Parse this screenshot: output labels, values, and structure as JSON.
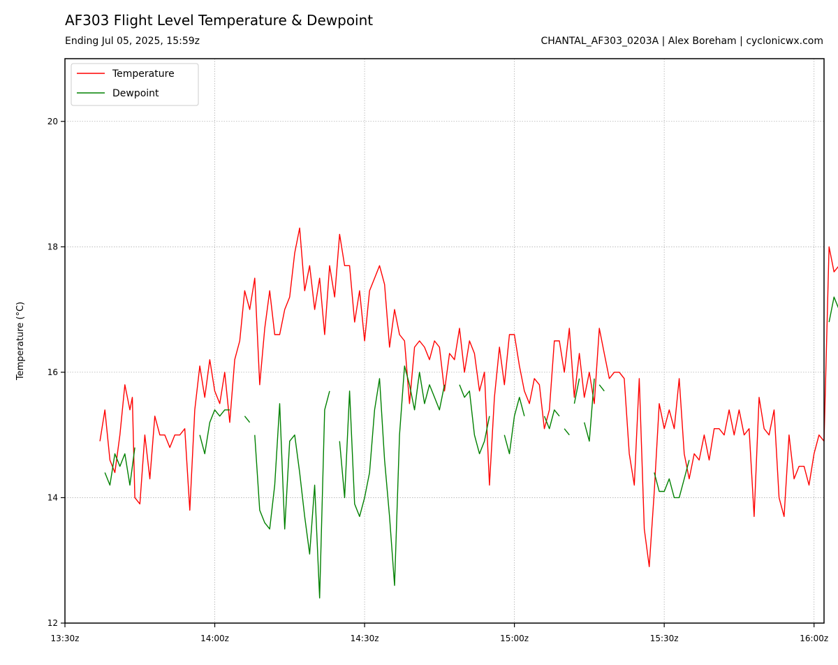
{
  "header": {
    "title": "AF303 Flight Level Temperature & Dewpoint",
    "subtitle": "Ending Jul 05, 2025, 15:59z",
    "credit": "CHANTAL_AF303_0203A | Alex Boreham | cyclonicwx.com"
  },
  "colors": {
    "temperature": "#ff0000",
    "dewpoint": "#008000",
    "grid": "#b0b0b0"
  },
  "chart_data": {
    "type": "line",
    "title": "AF303 Flight Level Temperature & Dewpoint",
    "subtitle": "Ending Jul 05, 2025, 15:59z",
    "xlabel": "",
    "ylabel": "Temperature (°C)",
    "xlim": [
      "13:30z",
      "16:02z"
    ],
    "ylim": [
      12,
      21
    ],
    "x_ticks": [
      "13:30z",
      "14:00z",
      "14:30z",
      "15:00z",
      "15:30z",
      "16:00z"
    ],
    "y_ticks": [
      12,
      14,
      16,
      18,
      20
    ],
    "grid": true,
    "legend_position": "top-left",
    "series": [
      {
        "name": "Temperature",
        "color": "#ff0000",
        "points": [
          [
            "13:37z",
            14.9
          ],
          [
            "13:38z",
            15.4
          ],
          [
            "13:39z",
            14.6
          ],
          [
            "13:40z",
            14.4
          ],
          [
            "13:41z",
            15.0
          ],
          [
            "13:42z",
            15.8
          ],
          [
            "13:43z",
            15.4
          ],
          [
            "13:43:30z",
            15.6
          ],
          [
            "13:44z",
            14.0
          ],
          [
            "13:45z",
            13.9
          ],
          [
            "13:46z",
            15.0
          ],
          [
            "13:47z",
            14.3
          ],
          [
            "13:48z",
            15.3
          ],
          [
            "13:49z",
            15.0
          ],
          [
            "13:50z",
            15.0
          ],
          [
            "13:51z",
            14.8
          ],
          [
            "13:52z",
            15.0
          ],
          [
            "13:53z",
            15.0
          ],
          [
            "13:54z",
            15.1
          ],
          [
            "13:55z",
            13.8
          ],
          [
            "13:56z",
            15.4
          ],
          [
            "13:57z",
            16.1
          ],
          [
            "13:58z",
            15.6
          ],
          [
            "13:59z",
            16.2
          ],
          [
            "14:00z",
            15.7
          ],
          [
            "14:01z",
            15.5
          ],
          [
            "14:02z",
            16.0
          ],
          [
            "14:03z",
            15.2
          ],
          [
            "14:04z",
            16.2
          ],
          [
            "14:05z",
            16.5
          ],
          [
            "14:06z",
            17.3
          ],
          [
            "14:07z",
            17.0
          ],
          [
            "14:08z",
            17.5
          ],
          [
            "14:09z",
            15.8
          ],
          [
            "14:10z",
            16.7
          ],
          [
            "14:11z",
            17.3
          ],
          [
            "14:12z",
            16.6
          ],
          [
            "14:13z",
            16.6
          ],
          [
            "14:14z",
            17.0
          ],
          [
            "14:15z",
            17.2
          ],
          [
            "14:16z",
            17.9
          ],
          [
            "14:17z",
            18.3
          ],
          [
            "14:18z",
            17.3
          ],
          [
            "14:19z",
            17.7
          ],
          [
            "14:20z",
            17.0
          ],
          [
            "14:21z",
            17.5
          ],
          [
            "14:22z",
            16.6
          ],
          [
            "14:23z",
            17.7
          ],
          [
            "14:24z",
            17.2
          ],
          [
            "14:25z",
            18.2
          ],
          [
            "14:26z",
            17.7
          ],
          [
            "14:27z",
            17.7
          ],
          [
            "14:28z",
            16.8
          ],
          [
            "14:29z",
            17.3
          ],
          [
            "14:30z",
            16.5
          ],
          [
            "14:31z",
            17.3
          ],
          [
            "14:32z",
            17.5
          ],
          [
            "14:33z",
            17.7
          ],
          [
            "14:34z",
            17.4
          ],
          [
            "14:35z",
            16.4
          ],
          [
            "14:36z",
            17.0
          ],
          [
            "14:37z",
            16.6
          ],
          [
            "14:38z",
            16.5
          ],
          [
            "14:39z",
            15.5
          ],
          [
            "14:40z",
            16.4
          ],
          [
            "14:41z",
            16.5
          ],
          [
            "14:42z",
            16.4
          ],
          [
            "14:43z",
            16.2
          ],
          [
            "14:44z",
            16.5
          ],
          [
            "14:45z",
            16.4
          ],
          [
            "14:46z",
            15.7
          ],
          [
            "14:47z",
            16.3
          ],
          [
            "14:48z",
            16.2
          ],
          [
            "14:49z",
            16.7
          ],
          [
            "14:50z",
            16.0
          ],
          [
            "14:51z",
            16.5
          ],
          [
            "14:52z",
            16.3
          ],
          [
            "14:53z",
            15.7
          ],
          [
            "14:54z",
            16.0
          ],
          [
            "14:55z",
            14.2
          ],
          [
            "14:56z",
            15.6
          ],
          [
            "14:57z",
            16.4
          ],
          [
            "14:58z",
            15.8
          ],
          [
            "14:59z",
            16.6
          ],
          [
            "15:00z",
            16.6
          ],
          [
            "15:01z",
            16.1
          ],
          [
            "15:02z",
            15.7
          ],
          [
            "15:03z",
            15.5
          ],
          [
            "15:04z",
            15.9
          ],
          [
            "15:05z",
            15.8
          ],
          [
            "15:06z",
            15.1
          ],
          [
            "15:07z",
            15.4
          ],
          [
            "15:08z",
            16.5
          ],
          [
            "15:09z",
            16.5
          ],
          [
            "15:10z",
            16.0
          ],
          [
            "15:11z",
            16.7
          ],
          [
            "15:12z",
            15.6
          ],
          [
            "15:13z",
            16.3
          ],
          [
            "15:14z",
            15.6
          ],
          [
            "15:15z",
            16.0
          ],
          [
            "15:16z",
            15.5
          ],
          [
            "15:17z",
            16.7
          ],
          [
            "15:18z",
            16.3
          ],
          [
            "15:19z",
            15.9
          ],
          [
            "15:20z",
            16.0
          ],
          [
            "15:21z",
            16.0
          ],
          [
            "15:22z",
            15.9
          ],
          [
            "15:23z",
            14.7
          ],
          [
            "15:24z",
            14.2
          ],
          [
            "15:25z",
            15.9
          ],
          [
            "15:26z",
            13.5
          ],
          [
            "15:27z",
            12.9
          ],
          [
            "15:28z",
            14.1
          ],
          [
            "15:29z",
            15.5
          ],
          [
            "15:30z",
            15.1
          ],
          [
            "15:31z",
            15.4
          ],
          [
            "15:32z",
            15.1
          ],
          [
            "15:33z",
            15.9
          ],
          [
            "15:34z",
            14.7
          ],
          [
            "15:35z",
            14.3
          ],
          [
            "15:36z",
            14.7
          ],
          [
            "15:37z",
            14.6
          ],
          [
            "15:38z",
            15.0
          ],
          [
            "15:39z",
            14.6
          ],
          [
            "15:40z",
            15.1
          ],
          [
            "15:41z",
            15.1
          ],
          [
            "15:42z",
            15.0
          ],
          [
            "15:43z",
            15.4
          ],
          [
            "15:44z",
            15.0
          ],
          [
            "15:45z",
            15.4
          ],
          [
            "15:46z",
            15.0
          ],
          [
            "15:47z",
            15.1
          ],
          [
            "15:48z",
            13.7
          ],
          [
            "15:49z",
            15.6
          ],
          [
            "15:50z",
            15.1
          ],
          [
            "15:51z",
            15.0
          ],
          [
            "15:52z",
            15.4
          ],
          [
            "15:53z",
            14.0
          ],
          [
            "15:54z",
            13.7
          ],
          [
            "15:55z",
            15.0
          ],
          [
            "15:56z",
            14.3
          ],
          [
            "15:57z",
            14.5
          ],
          [
            "15:58z",
            14.5
          ],
          [
            "15:59z",
            14.2
          ],
          [
            "16:00z",
            14.7
          ],
          [
            "16:01z",
            15.0
          ],
          [
            "16:02z",
            14.9
          ],
          [
            "16:03z",
            18.0
          ],
          [
            "16:04z",
            17.6
          ],
          [
            "16:05z",
            17.7
          ],
          [
            "16:06z",
            18.0
          ],
          [
            "16:07z",
            19.8
          ],
          [
            "16:08z",
            20.6
          ],
          [
            "16:09z",
            20.1
          ],
          [
            "16:10z",
            19.5
          ],
          [
            "16:11z",
            18.6
          ],
          [
            "16:12z",
            18.6
          ],
          [
            "16:13z",
            19.0
          ],
          [
            "16:14z",
            19.1
          ],
          [
            "16:15z",
            19.3
          ],
          [
            "16:16z",
            20.0
          ],
          [
            "16:17z",
            18.8
          ],
          [
            "16:18z",
            18.5
          ]
        ]
      },
      {
        "name": "Dewpoint",
        "color": "#008000",
        "segments": [
          [
            [
              "13:38z",
              14.4
            ],
            [
              "13:39z",
              14.2
            ],
            [
              "13:40z",
              14.7
            ],
            [
              "13:41z",
              14.5
            ],
            [
              "13:42z",
              14.7
            ],
            [
              "13:43z",
              14.2
            ],
            [
              "13:44z",
              14.8
            ]
          ],
          [
            [
              "13:57z",
              15.0
            ],
            [
              "13:58z",
              14.7
            ],
            [
              "13:59z",
              15.2
            ],
            [
              "14:00z",
              15.4
            ],
            [
              "14:01z",
              15.3
            ],
            [
              "14:02z",
              15.4
            ],
            [
              "14:03z",
              15.4
            ]
          ],
          [
            [
              "14:06z",
              15.3
            ],
            [
              "14:07z",
              15.2
            ]
          ],
          [
            [
              "14:08z",
              15.0
            ],
            [
              "14:09z",
              13.8
            ],
            [
              "14:10z",
              13.6
            ],
            [
              "14:11z",
              13.5
            ],
            [
              "14:12z",
              14.2
            ],
            [
              "14:13z",
              15.5
            ],
            [
              "14:14z",
              13.5
            ],
            [
              "14:15z",
              14.9
            ],
            [
              "14:16z",
              15.0
            ],
            [
              "14:17z",
              14.4
            ],
            [
              "14:18z",
              13.7
            ],
            [
              "14:19z",
              13.1
            ],
            [
              "14:20z",
              14.2
            ],
            [
              "14:21z",
              12.4
            ],
            [
              "14:22z",
              15.4
            ],
            [
              "14:23z",
              15.7
            ]
          ],
          [
            [
              "14:25z",
              14.9
            ],
            [
              "14:26z",
              14.0
            ],
            [
              "14:27z",
              15.7
            ],
            [
              "14:28z",
              13.9
            ],
            [
              "14:29z",
              13.7
            ],
            [
              "14:30z",
              14.0
            ],
            [
              "14:31z",
              14.4
            ],
            [
              "14:32z",
              15.4
            ],
            [
              "14:33z",
              15.9
            ],
            [
              "14:34z",
              14.6
            ],
            [
              "14:35z",
              13.7
            ],
            [
              "14:36z",
              12.6
            ],
            [
              "14:37z",
              15.0
            ],
            [
              "14:38z",
              16.1
            ],
            [
              "14:39z",
              15.8
            ],
            [
              "14:40z",
              15.4
            ],
            [
              "14:41z",
              16.0
            ],
            [
              "14:42z",
              15.5
            ],
            [
              "14:43z",
              15.8
            ],
            [
              "14:44z",
              15.6
            ],
            [
              "14:45z",
              15.4
            ],
            [
              "14:46z",
              15.8
            ]
          ],
          [
            [
              "14:49z",
              15.8
            ],
            [
              "14:50z",
              15.6
            ],
            [
              "14:51z",
              15.7
            ],
            [
              "14:52z",
              15.0
            ],
            [
              "14:53z",
              14.7
            ],
            [
              "14:54z",
              14.9
            ],
            [
              "14:55z",
              15.3
            ]
          ],
          [
            [
              "14:58z",
              15.0
            ],
            [
              "14:59z",
              14.7
            ],
            [
              "15:00z",
              15.3
            ],
            [
              "15:01z",
              15.6
            ],
            [
              "15:02z",
              15.3
            ]
          ],
          [
            [
              "15:06z",
              15.3
            ],
            [
              "15:07z",
              15.1
            ],
            [
              "15:08z",
              15.4
            ],
            [
              "15:09z",
              15.3
            ]
          ],
          [
            [
              "15:10z",
              15.1
            ],
            [
              "15:11z",
              15.0
            ]
          ],
          [
            [
              "15:12z",
              15.5
            ],
            [
              "15:13z",
              15.9
            ]
          ],
          [
            [
              "15:14z",
              15.2
            ],
            [
              "15:15z",
              14.9
            ],
            [
              "15:16z",
              15.9
            ]
          ],
          [
            [
              "15:17z",
              15.8
            ],
            [
              "15:18z",
              15.7
            ]
          ],
          [
            [
              "15:28z",
              14.4
            ],
            [
              "15:29z",
              14.1
            ],
            [
              "15:30z",
              14.1
            ],
            [
              "15:31z",
              14.3
            ],
            [
              "15:32z",
              14.0
            ],
            [
              "15:33z",
              14.0
            ],
            [
              "15:34z",
              14.3
            ],
            [
              "15:35z",
              14.6
            ]
          ],
          [
            [
              "16:03z",
              16.8
            ],
            [
              "16:04z",
              17.2
            ],
            [
              "16:05z",
              17.0
            ],
            [
              "16:06z",
              16.4
            ],
            [
              "16:07z",
              15.3
            ],
            [
              "16:08z",
              15.3
            ],
            [
              "16:09z",
              15.6
            ],
            [
              "16:10z",
              15.0
            ],
            [
              "16:11z",
              15.7
            ],
            [
              "16:12z",
              14.6
            ],
            [
              "16:13z",
              13.7
            ],
            [
              "16:14z",
              14.1
            ],
            [
              "16:15z",
              14.1
            ],
            [
              "16:16z",
              12.9
            ],
            [
              "16:17z",
              13.4
            ],
            [
              "16:18z",
              14.0
            ]
          ]
        ]
      }
    ]
  }
}
